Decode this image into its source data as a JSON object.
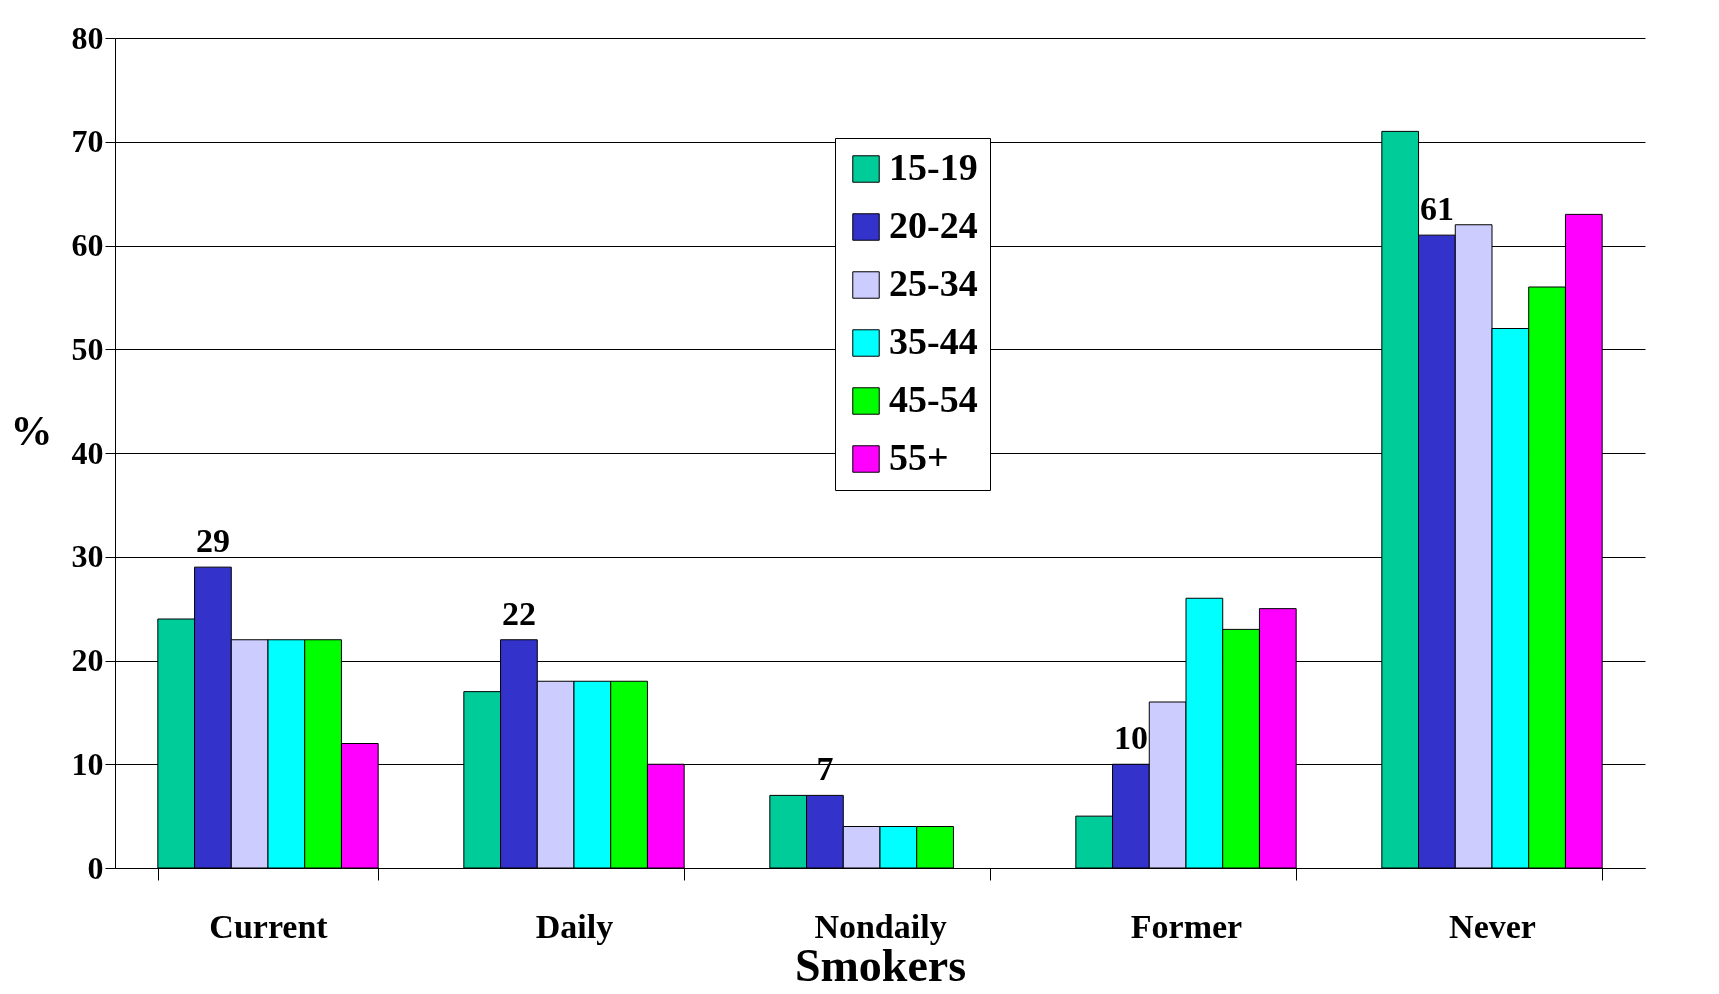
{
  "chart_data": {
    "type": "bar",
    "xlabel": "Smokers",
    "ylabel": "%",
    "categories": [
      "Current",
      "Daily",
      "Nondaily",
      "Former",
      "Never"
    ],
    "series": [
      {
        "name": "15-19",
        "color": "#00cc99",
        "values": [
          24,
          17,
          7,
          5,
          71
        ]
      },
      {
        "name": "20-24",
        "color": "#3333cc",
        "values": [
          29,
          22,
          7,
          10,
          61
        ],
        "value_labels": [
          "29",
          "22",
          "7",
          "10",
          "61"
        ]
      },
      {
        "name": "25-34",
        "color": "#ccccff",
        "values": [
          22,
          18,
          4,
          16,
          62
        ]
      },
      {
        "name": "35-44",
        "color": "#00ffff",
        "values": [
          22,
          18,
          4,
          26,
          52
        ]
      },
      {
        "name": "45-54",
        "color": "#00ff00",
        "values": [
          22,
          18,
          4,
          23,
          56
        ]
      },
      {
        "name": "55+",
        "color": "#ff00ff",
        "values": [
          12,
          10,
          null,
          25,
          63
        ]
      }
    ],
    "ylim": [
      0,
      80
    ],
    "yticks": [
      0,
      10,
      20,
      30,
      40,
      50,
      60,
      70,
      80
    ],
    "grid": "y",
    "legend": "top"
  }
}
